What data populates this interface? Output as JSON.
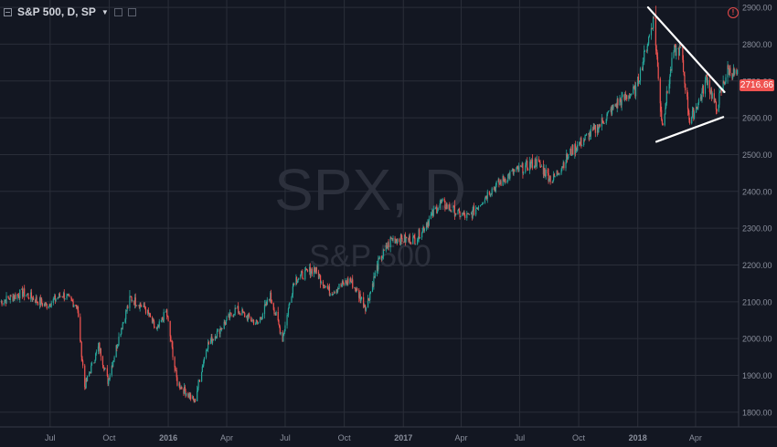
{
  "header": {
    "symbol_label": "S&P 500, D, SP"
  },
  "watermark": {
    "title": "SPX, D",
    "subtitle": "S&P 500"
  },
  "last_price": "2716.66",
  "colors": {
    "background": "#131722",
    "up": "#26a69a",
    "down": "#ef5350",
    "grid": "#2a2e39",
    "axis_text": "#8a8f9c",
    "trendline": "#ffffff"
  },
  "chart_data": {
    "type": "candlestick",
    "title": "S&P 500, D, SP",
    "watermark": "SPX, D",
    "ylim": [
      1760,
      2920
    ],
    "y_ticks": [
      1800,
      1900,
      2000,
      2100,
      2200,
      2300,
      2400,
      2500,
      2600,
      2700,
      2800,
      2900
    ],
    "y_tick_labels": [
      "1800.00",
      "1900.00",
      "2000.00",
      "2100.00",
      "2200.00",
      "2300.00",
      "2400.00",
      "2500.00",
      "2600.00",
      "2700.00",
      "2800.00",
      "2900.00"
    ],
    "x_ticks": [
      "Jul",
      "Oct",
      "2016",
      "Apr",
      "Jul",
      "Oct",
      "2017",
      "Apr",
      "Jul",
      "Oct",
      "2018",
      "Apr"
    ],
    "x_tick_dates": [
      "2015-07-01",
      "2015-10-01",
      "2016-01-01",
      "2016-04-01",
      "2016-07-01",
      "2016-10-01",
      "2017-01-01",
      "2017-04-01",
      "2017-07-01",
      "2017-10-01",
      "2018-01-01",
      "2018-04-01"
    ],
    "x_range": [
      "2015-04-14",
      "2018-06-07"
    ],
    "grid": true,
    "price_path": [
      [
        "2015-04-15",
        2100
      ],
      [
        "2015-05-20",
        2125
      ],
      [
        "2015-06-25",
        2090
      ],
      [
        "2015-07-20",
        2120
      ],
      [
        "2015-08-12",
        2090
      ],
      [
        "2015-08-24",
        1870
      ],
      [
        "2015-09-15",
        1980
      ],
      [
        "2015-09-29",
        1885
      ],
      [
        "2015-10-20",
        2030
      ],
      [
        "2015-11-03",
        2110
      ],
      [
        "2015-11-25",
        2085
      ],
      [
        "2015-12-14",
        2020
      ],
      [
        "2015-12-29",
        2075
      ],
      [
        "2016-01-15",
        1880
      ],
      [
        "2016-02-11",
        1829
      ],
      [
        "2016-03-01",
        1980
      ],
      [
        "2016-04-15",
        2080
      ],
      [
        "2016-05-19",
        2040
      ],
      [
        "2016-06-08",
        2115
      ],
      [
        "2016-06-27",
        2000
      ],
      [
        "2016-07-15",
        2160
      ],
      [
        "2016-08-15",
        2190
      ],
      [
        "2016-09-09",
        2125
      ],
      [
        "2016-10-10",
        2160
      ],
      [
        "2016-11-04",
        2085
      ],
      [
        "2016-11-23",
        2205
      ],
      [
        "2016-12-13",
        2270
      ],
      [
        "2017-01-20",
        2270
      ],
      [
        "2017-02-28",
        2370
      ],
      [
        "2017-03-27",
        2340
      ],
      [
        "2017-04-13",
        2330
      ],
      [
        "2017-05-15",
        2400
      ],
      [
        "2017-06-19",
        2450
      ],
      [
        "2017-07-27",
        2480
      ],
      [
        "2017-08-21",
        2430
      ],
      [
        "2017-09-20",
        2510
      ],
      [
        "2017-10-31",
        2575
      ],
      [
        "2017-11-30",
        2640
      ],
      [
        "2017-12-29",
        2675
      ],
      [
        "2018-01-26",
        2872
      ],
      [
        "2018-02-08",
        2580
      ],
      [
        "2018-02-26",
        2780
      ],
      [
        "2018-03-09",
        2785
      ],
      [
        "2018-03-23",
        2590
      ],
      [
        "2018-04-10",
        2660
      ],
      [
        "2018-04-18",
        2710
      ],
      [
        "2018-05-03",
        2625
      ],
      [
        "2018-05-21",
        2730
      ],
      [
        "2018-06-05",
        2716
      ]
    ],
    "trendlines": [
      {
        "from": [
          "2018-01-17",
          2900
        ],
        "to": [
          "2018-05-16",
          2670
        ]
      },
      {
        "from": [
          "2018-01-30",
          2535
        ],
        "to": [
          "2018-05-14",
          2602
        ]
      }
    ]
  }
}
